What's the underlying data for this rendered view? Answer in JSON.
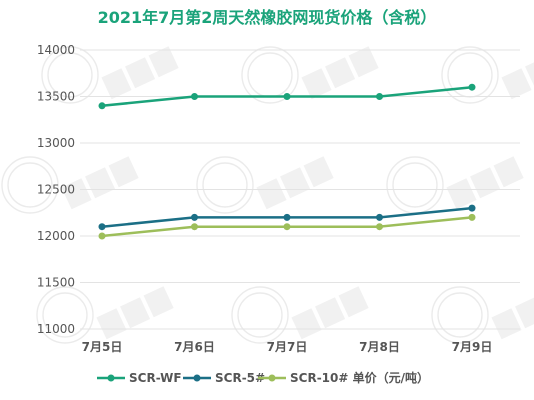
{
  "chart_data": {
    "type": "line",
    "title": "2021年7月第2周天然橡胶网现货价格（含税）",
    "xlabel": "",
    "ylabel": "",
    "categories": [
      "7月5日",
      "7月6日",
      "7月7日",
      "7月8日",
      "7月9日"
    ],
    "yticks": [
      "11000",
      "11500",
      "12000",
      "12500",
      "13000",
      "13500",
      "14000"
    ],
    "ylim": [
      11000,
      14000
    ],
    "grid": true,
    "legend_position": "bottom",
    "series": [
      {
        "name": "SCR-WF",
        "color": "#1aa37a",
        "values": [
          13400,
          13500,
          13500,
          13500,
          13600
        ]
      },
      {
        "name": "SCR-5#",
        "color": "#1b6f86",
        "values": [
          12100,
          12200,
          12200,
          12200,
          12300
        ]
      },
      {
        "name": "SCR-10# 单价（元/吨）",
        "color": "#9dbe5a",
        "values": [
          12000,
          12100,
          12100,
          12100,
          12200
        ]
      }
    ]
  }
}
